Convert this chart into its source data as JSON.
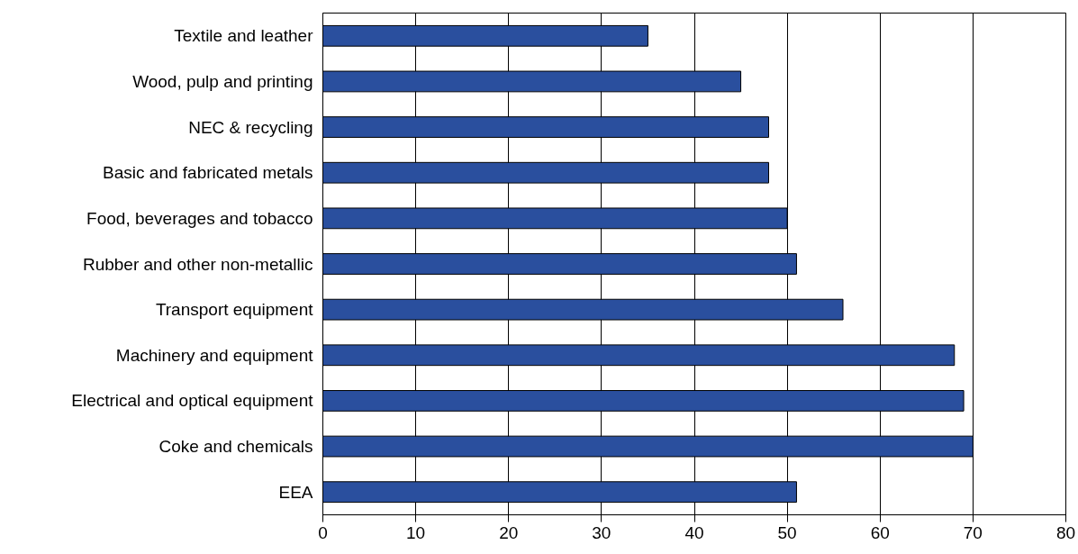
{
  "chart_data": {
    "type": "bar",
    "orientation": "horizontal",
    "categories": [
      "Textile and leather",
      "Wood, pulp and printing",
      "NEC & recycling",
      "Basic and fabricated metals",
      "Food, beverages and tobacco",
      "Rubber and other non-metallic",
      "Transport equipment",
      "Machinery and equipment",
      "Electrical and optical equipment",
      "Coke and chemicals",
      "EEA"
    ],
    "values": [
      35,
      45,
      48,
      48,
      50,
      51,
      56,
      68,
      69,
      70,
      51
    ],
    "color": "#2a4f9e",
    "xlim": [
      0,
      80
    ],
    "xticks": [
      0,
      10,
      20,
      30,
      40,
      50,
      60,
      70,
      80
    ],
    "grid": "x"
  }
}
